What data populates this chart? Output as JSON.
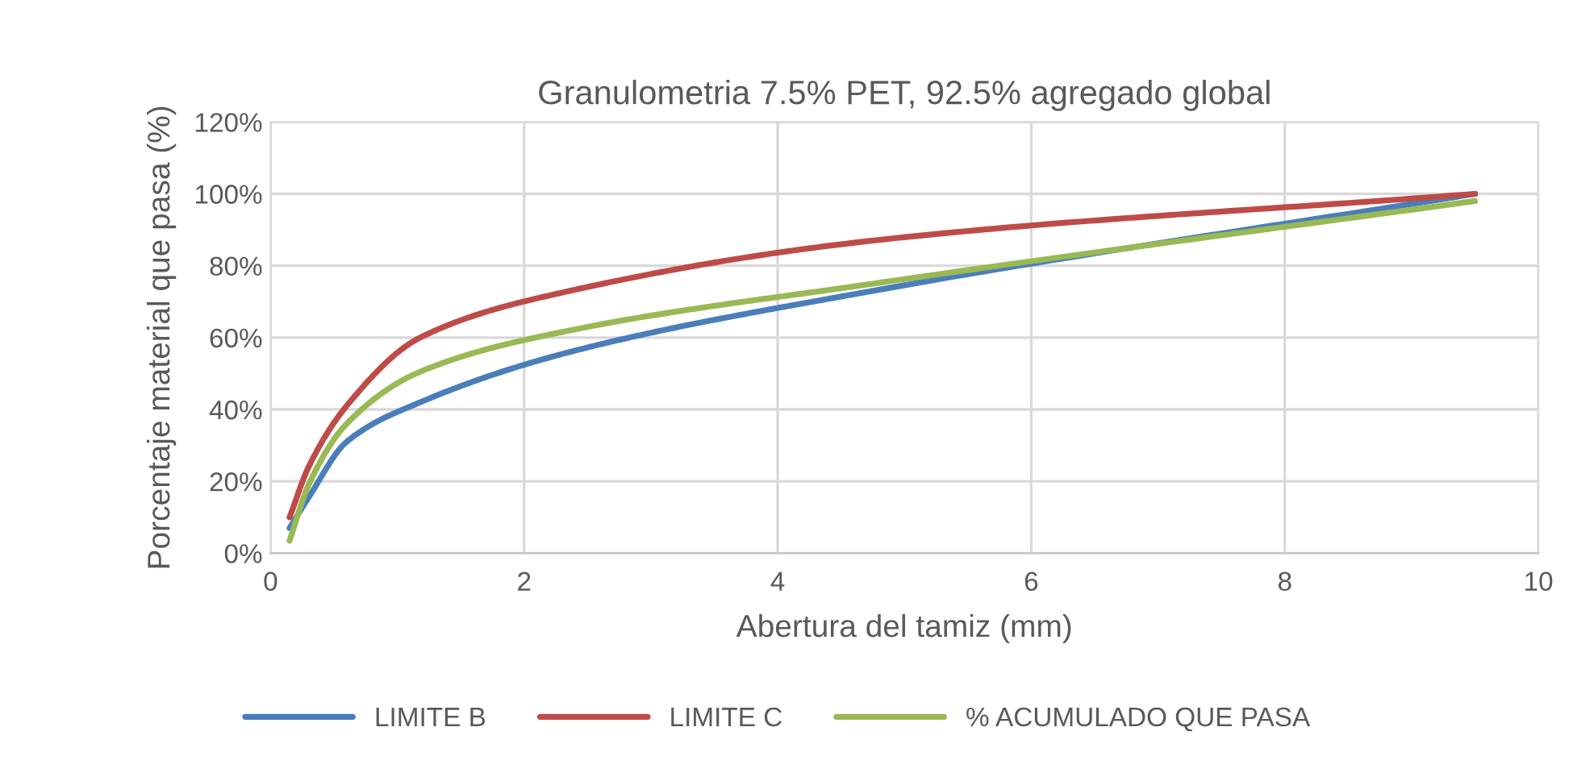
{
  "chart_data": {
    "type": "line",
    "title": "Granulometria 7.5% PET, 92.5% agregado global",
    "xlabel": "Abertura del tamiz (mm)",
    "ylabel": "Porcentaje material que pasa (%)",
    "x": [
      0.15,
      0.3,
      0.6,
      1.18,
      2.36,
      4.75,
      9.5
    ],
    "series": [
      {
        "name": "LIMITE B",
        "color": "#4a7ebb",
        "values": [
          7,
          15.5,
          31,
          42,
          56,
          73,
          100
        ]
      },
      {
        "name": "LIMITE C",
        "color": "#be4b48",
        "values": [
          10,
          24,
          41,
          60,
          73,
          87,
          100
        ]
      },
      {
        "name": "% ACUMULADO QUE PASA",
        "color": "#98b954",
        "values": [
          3.5,
          19,
          36,
          50.5,
          62,
          75,
          98
        ]
      }
    ],
    "xlim": [
      0,
      10
    ],
    "xticks": [
      0,
      2,
      4,
      6,
      8,
      10
    ],
    "ylim": [
      0,
      120
    ],
    "yticks": [
      {
        "value": 0,
        "label": "0%"
      },
      {
        "value": 20,
        "label": "20%"
      },
      {
        "value": 40,
        "label": "40%"
      },
      {
        "value": 60,
        "label": "60%"
      },
      {
        "value": 80,
        "label": "80%"
      },
      {
        "value": 100,
        "label": "100%"
      },
      {
        "value": 120,
        "label": "120%"
      }
    ],
    "grid": true,
    "legend": "bottom",
    "marker": "none",
    "line_style": "solid"
  }
}
